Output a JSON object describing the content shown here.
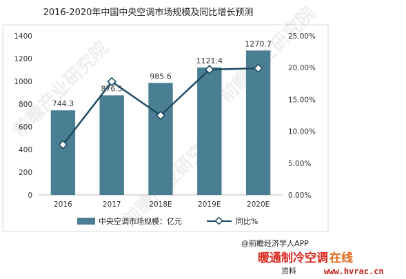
{
  "chart_data": {
    "type": "bar",
    "title": "2016-2020年中国中央空调市场规模及同比增长预测",
    "categories": [
      "2016",
      "2017",
      "2018E",
      "2019E",
      "2020E"
    ],
    "series": [
      {
        "name": "中央空调市场规模：亿元",
        "type": "bar",
        "axis": "left",
        "values": [
          744.3,
          876.5,
          985.6,
          1121.4,
          1270.7
        ],
        "labels": [
          "744.3",
          "876.5",
          "985.6",
          "1121.4",
          "1270.7"
        ],
        "color": "#4a7f93"
      },
      {
        "name": "同比%",
        "type": "line",
        "axis": "right",
        "values": [
          7.9,
          17.8,
          12.5,
          19.7,
          19.9
        ],
        "color": "#1c4a62"
      }
    ],
    "y_left": {
      "min": 0,
      "max": 1400,
      "step": 200,
      "ticks": [
        "0",
        "200",
        "400",
        "600",
        "800",
        "1000",
        "1200",
        "1400"
      ]
    },
    "y_right": {
      "min": 0,
      "max": 25,
      "step": 5,
      "ticks": [
        "0.00%",
        "5.00%",
        "10.00%",
        "15.00%",
        "20.00%",
        "25.00%"
      ]
    },
    "grid": false,
    "legend_position": "bottom"
  },
  "footer": {
    "source": "@前瞻经济学人APP",
    "brand_part1": "暖通制冷空调",
    "brand_part2": "在线",
    "site": "www.hvrac.cn",
    "ziliao": "资料"
  }
}
